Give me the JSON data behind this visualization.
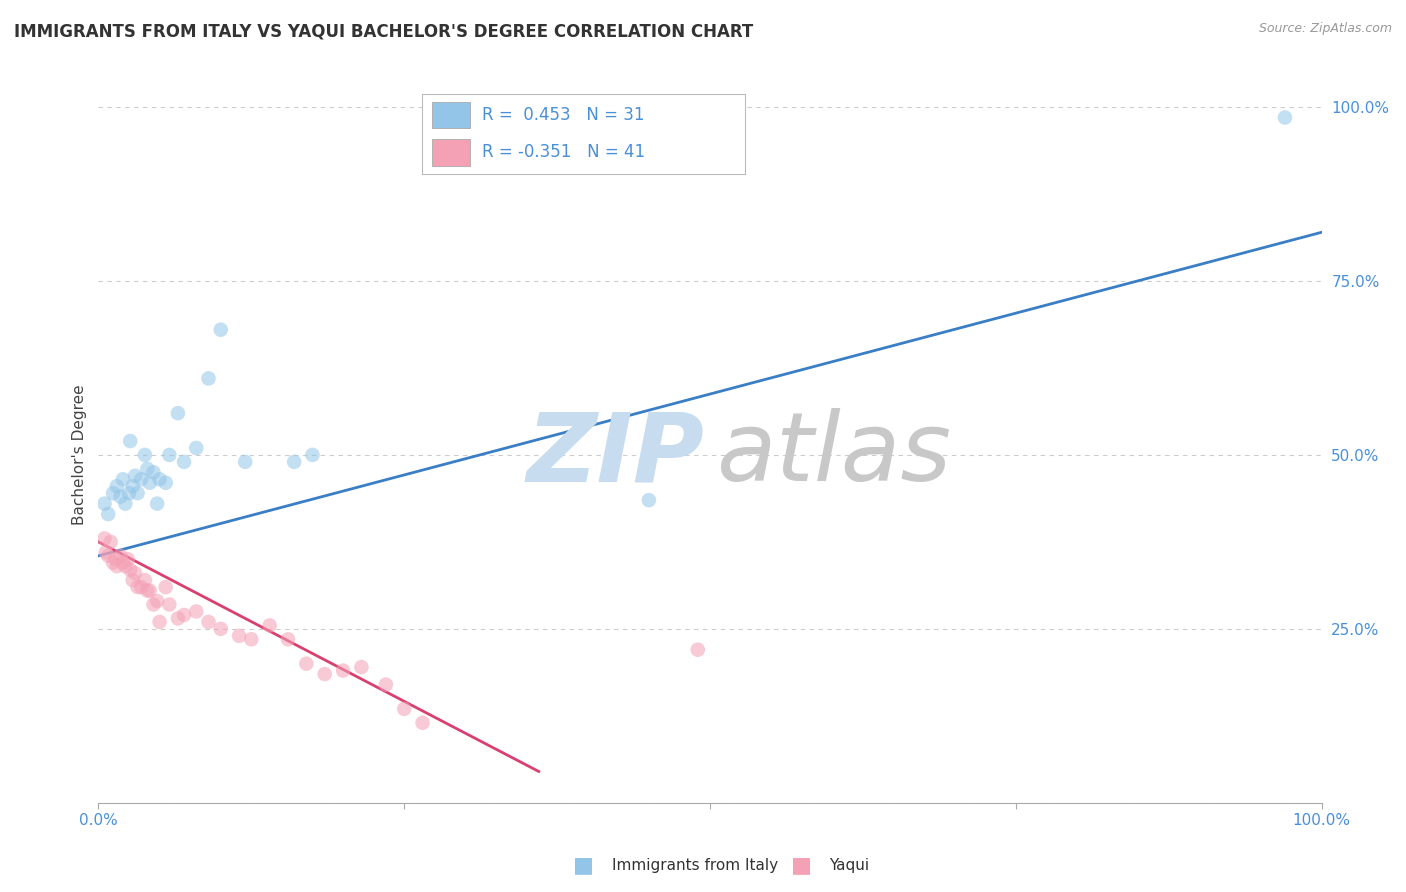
{
  "title": "IMMIGRANTS FROM ITALY VS YAQUI BACHELOR'S DEGREE CORRELATION CHART",
  "source_text": "Source: ZipAtlas.com",
  "ylabel": "Bachelor's Degree",
  "legend_label1": "Immigrants from Italy",
  "legend_label2": "Yaqui",
  "R1": 0.453,
  "N1": 31,
  "R2": -0.351,
  "N2": 41,
  "color1": "#92C5E8",
  "color2": "#F4A0B5",
  "line_color1": "#3A7EC6",
  "line_color2": "#D94070",
  "background_color": "#FFFFFF",
  "grid_color": "#CCCCCC",
  "watermark_zip_color": "#C8DCF0",
  "watermark_atlas_color": "#C8C8C8",
  "xlim": [
    0.0,
    1.0
  ],
  "ylim": [
    0.0,
    1.0
  ],
  "blue_line_x": [
    0.0,
    1.0
  ],
  "blue_line_y": [
    0.355,
    0.82
  ],
  "pink_line_x": [
    0.0,
    0.36
  ],
  "pink_line_y": [
    0.375,
    0.045
  ],
  "blue_dots_x": [
    0.005,
    0.008,
    0.012,
    0.015,
    0.018,
    0.02,
    0.022,
    0.025,
    0.026,
    0.028,
    0.03,
    0.032,
    0.035,
    0.038,
    0.04,
    0.042,
    0.045,
    0.048,
    0.05,
    0.055,
    0.058,
    0.065,
    0.07,
    0.08,
    0.09,
    0.1,
    0.12,
    0.16,
    0.175,
    0.45,
    0.97
  ],
  "blue_dots_y": [
    0.43,
    0.415,
    0.445,
    0.455,
    0.44,
    0.465,
    0.43,
    0.445,
    0.52,
    0.455,
    0.47,
    0.445,
    0.465,
    0.5,
    0.48,
    0.46,
    0.475,
    0.43,
    0.465,
    0.46,
    0.5,
    0.56,
    0.49,
    0.51,
    0.61,
    0.68,
    0.49,
    0.49,
    0.5,
    0.435,
    0.985
  ],
  "pink_dots_x": [
    0.005,
    0.006,
    0.008,
    0.01,
    0.012,
    0.014,
    0.015,
    0.018,
    0.02,
    0.022,
    0.024,
    0.026,
    0.028,
    0.03,
    0.032,
    0.035,
    0.038,
    0.04,
    0.042,
    0.045,
    0.048,
    0.05,
    0.055,
    0.058,
    0.065,
    0.07,
    0.08,
    0.09,
    0.1,
    0.115,
    0.125,
    0.14,
    0.155,
    0.17,
    0.185,
    0.2,
    0.215,
    0.235,
    0.25,
    0.265,
    0.49
  ],
  "pink_dots_y": [
    0.38,
    0.36,
    0.355,
    0.375,
    0.345,
    0.35,
    0.34,
    0.355,
    0.345,
    0.34,
    0.35,
    0.335,
    0.32,
    0.33,
    0.31,
    0.31,
    0.32,
    0.305,
    0.305,
    0.285,
    0.29,
    0.26,
    0.31,
    0.285,
    0.265,
    0.27,
    0.275,
    0.26,
    0.25,
    0.24,
    0.235,
    0.255,
    0.235,
    0.2,
    0.185,
    0.19,
    0.195,
    0.17,
    0.135,
    0.115,
    0.22
  ],
  "title_fontsize": 12,
  "source_fontsize": 9,
  "tick_fontsize": 11,
  "dot_size": 110,
  "dot_alpha": 0.55,
  "line_width": 2.0,
  "legend_fontsize": 12
}
